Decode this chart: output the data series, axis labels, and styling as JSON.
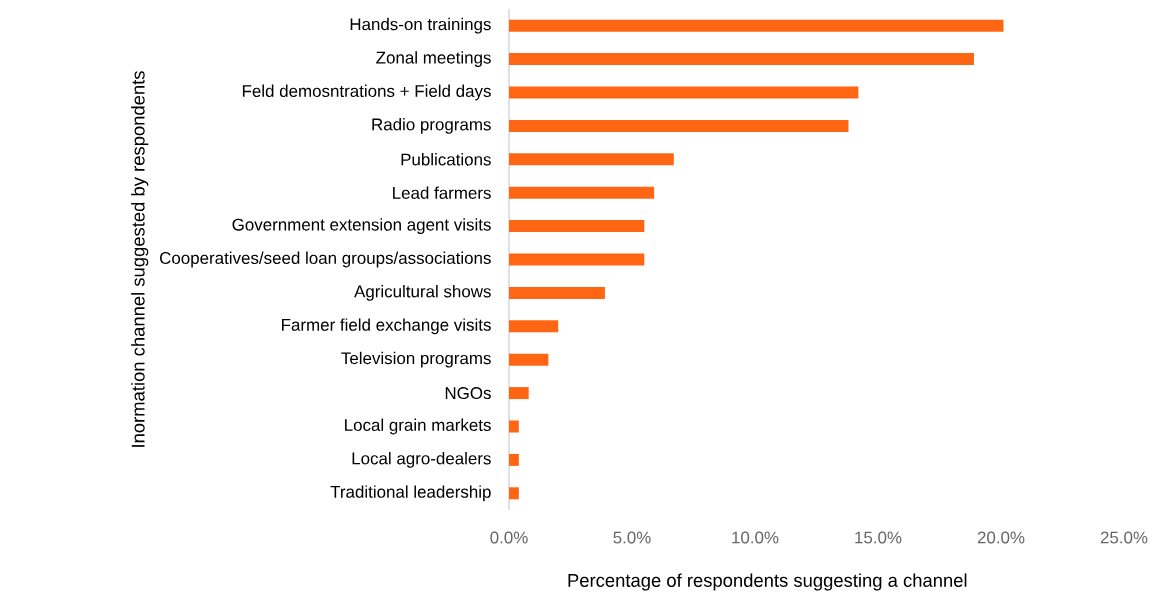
{
  "chart_data": {
    "type": "bar",
    "orientation": "horizontal",
    "xlabel": "Percentage of respondents suggesting a channel",
    "ylabel": "Inormation channel suggested by respondents",
    "categories": [
      "Hands-on trainings",
      "Zonal meetings",
      "Feld demosntrations + Field days",
      "Radio programs",
      "Publications",
      "Lead farmers",
      "Government extension agent visits",
      "Cooperatives/seed loan groups/associations",
      "Agricultural shows",
      "Farmer field exchange visits",
      "Television programs",
      "NGOs",
      "Local grain markets",
      "Local agro-dealers",
      "Traditional leadership"
    ],
    "values": [
      20.1,
      18.9,
      14.2,
      13.8,
      6.7,
      5.9,
      5.5,
      5.5,
      3.9,
      2.0,
      1.6,
      0.8,
      0.4,
      0.4,
      0.4
    ],
    "color": "#ff6614",
    "xlim": [
      0,
      25
    ],
    "xticks": [
      {
        "value": 0,
        "label": "0.0%"
      },
      {
        "value": 5,
        "label": "5.0%"
      },
      {
        "value": 10,
        "label": "10.0%"
      },
      {
        "value": 15,
        "label": "15.0%"
      },
      {
        "value": 20,
        "label": "20.0%"
      },
      {
        "value": 25,
        "label": "25.0%"
      }
    ],
    "grid": false
  }
}
